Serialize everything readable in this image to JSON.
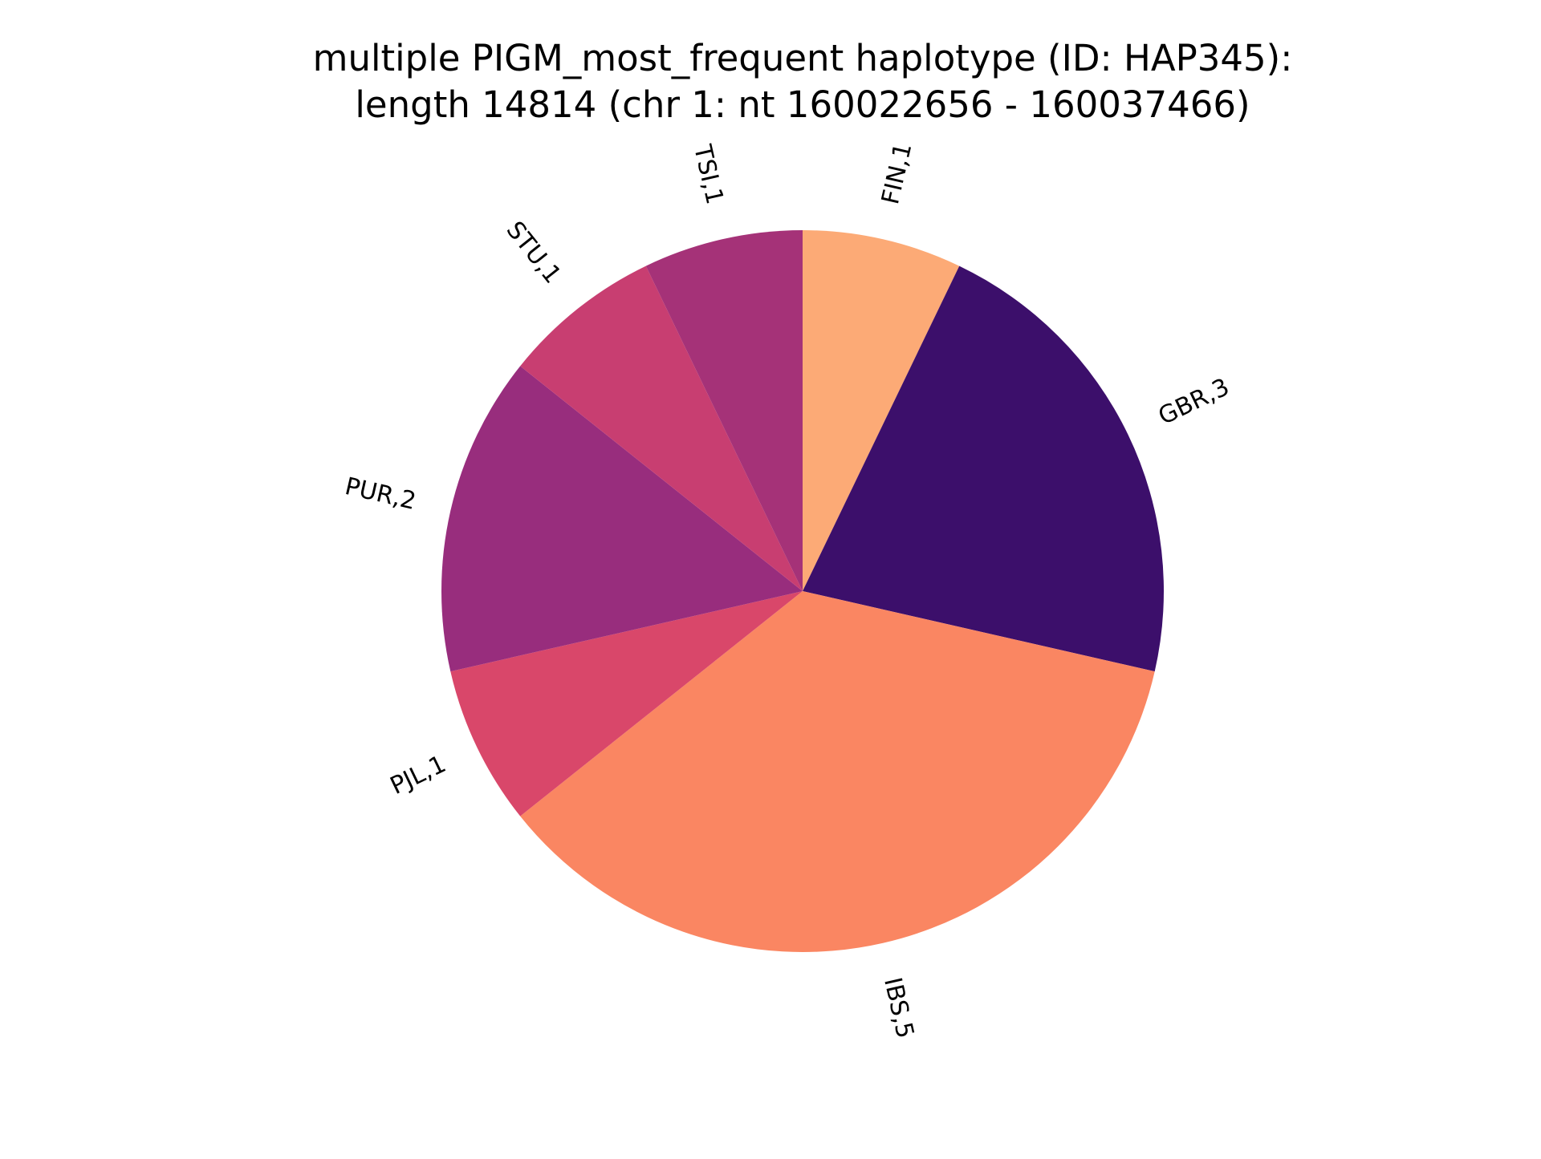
{
  "chart_data": {
    "type": "pie",
    "title": [
      "multiple PIGM_most_frequent haplotype (ID: HAP345):",
      "length 14814 (chr 1: nt 160022656 - 160037466)"
    ],
    "slices": [
      {
        "label": "FIN,1",
        "value": 1,
        "color": "#fcaa76"
      },
      {
        "label": "GBR,3",
        "value": 3,
        "color": "#3c0f6b"
      },
      {
        "label": "IBS,5",
        "value": 5,
        "color": "#fa8662"
      },
      {
        "label": "PJL,1",
        "value": 1,
        "color": "#d9476a"
      },
      {
        "label": "PUR,2",
        "value": 2,
        "color": "#982d7d"
      },
      {
        "label": "STU,1",
        "value": 1,
        "color": "#c83e71"
      },
      {
        "label": "TSI,1",
        "value": 1,
        "color": "#a53278"
      }
    ],
    "start_angle": "top",
    "direction": "clockwise"
  }
}
